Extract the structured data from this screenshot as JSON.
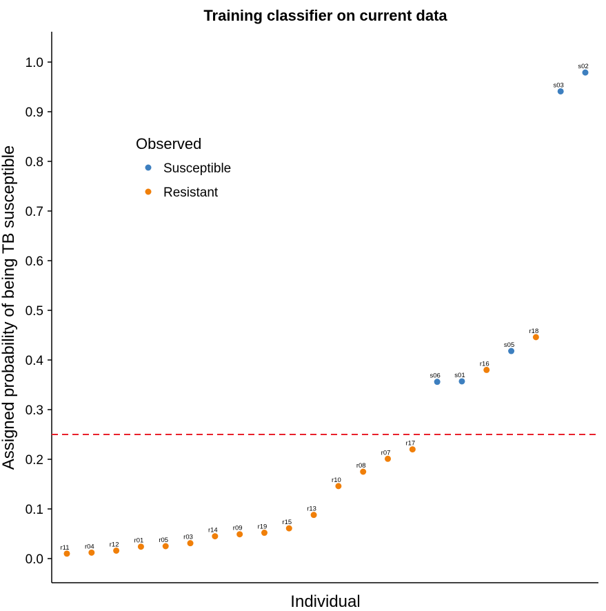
{
  "chart_data": {
    "type": "scatter",
    "title": "Training classifier on current data",
    "xlabel": "Individual",
    "ylabel": "Assigned probability of being TB susceptible",
    "ylim": [
      -0.05,
      1.06
    ],
    "yticks": [
      0.0,
      0.1,
      0.2,
      0.3,
      0.4,
      0.5,
      0.6,
      0.7,
      0.8,
      0.9,
      1.0
    ],
    "ytick_labels": [
      "0.0",
      "0.1",
      "0.2",
      "0.3",
      "0.4",
      "0.5",
      "0.6",
      "0.7",
      "0.8",
      "0.9",
      "1.0"
    ],
    "grid": false,
    "threshold": {
      "value": 0.25,
      "color": "#e8202a",
      "style": "dashed"
    },
    "legend": {
      "title": "Observed",
      "placement": "top-left",
      "entries": [
        {
          "label": "Susceptible",
          "color": "#3d7fbf"
        },
        {
          "label": "Resistant",
          "color": "#f07f09"
        }
      ]
    },
    "points": [
      {
        "label": "r11",
        "group": "Resistant",
        "value": 0.01
      },
      {
        "label": "r04",
        "group": "Resistant",
        "value": 0.012
      },
      {
        "label": "r12",
        "group": "Resistant",
        "value": 0.016
      },
      {
        "label": "r01",
        "group": "Resistant",
        "value": 0.024
      },
      {
        "label": "r05",
        "group": "Resistant",
        "value": 0.025
      },
      {
        "label": "r03",
        "group": "Resistant",
        "value": 0.031
      },
      {
        "label": "r14",
        "group": "Resistant",
        "value": 0.045
      },
      {
        "label": "r09",
        "group": "Resistant",
        "value": 0.049
      },
      {
        "label": "r19",
        "group": "Resistant",
        "value": 0.052
      },
      {
        "label": "r15",
        "group": "Resistant",
        "value": 0.061
      },
      {
        "label": "r13",
        "group": "Resistant",
        "value": 0.088
      },
      {
        "label": "r10",
        "group": "Resistant",
        "value": 0.146
      },
      {
        "label": "r08",
        "group": "Resistant",
        "value": 0.175
      },
      {
        "label": "r07",
        "group": "Resistant",
        "value": 0.201
      },
      {
        "label": "r17",
        "group": "Resistant",
        "value": 0.22
      },
      {
        "label": "s06",
        "group": "Susceptible",
        "value": 0.356
      },
      {
        "label": "s01",
        "group": "Susceptible",
        "value": 0.357
      },
      {
        "label": "r16",
        "group": "Resistant",
        "value": 0.38
      },
      {
        "label": "s05",
        "group": "Susceptible",
        "value": 0.418
      },
      {
        "label": "r18",
        "group": "Resistant",
        "value": 0.446
      },
      {
        "label": "s03",
        "group": "Susceptible",
        "value": 0.941
      },
      {
        "label": "s02",
        "group": "Susceptible",
        "value": 0.979
      }
    ]
  }
}
